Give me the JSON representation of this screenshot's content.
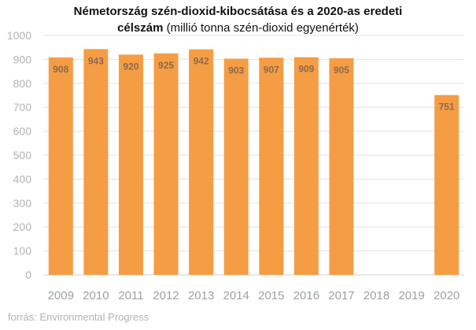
{
  "chart_data": {
    "type": "bar",
    "title_line1": "Németország szén-dioxid-kibocsátása  és a 2020-as eredeti",
    "title_line2_bold": "célszám",
    "title_line2_rest": " (millió tonna szén-dioxid  egyenérték)",
    "categories": [
      "2009",
      "2010",
      "2011",
      "2012",
      "2013",
      "2014",
      "2015",
      "2016",
      "2017",
      "2018",
      "2019",
      "2020"
    ],
    "values": [
      908,
      943,
      920,
      925,
      942,
      903,
      907,
      909,
      905,
      null,
      null,
      751
    ],
    "data_labels": [
      "908",
      "943",
      "920",
      "925",
      "942",
      "903",
      "907",
      "909",
      "905",
      "",
      "",
      "751"
    ],
    "ylim": [
      0,
      1000
    ],
    "yticks": [
      0,
      100,
      200,
      300,
      400,
      500,
      600,
      700,
      800,
      900,
      1000
    ],
    "grid": true,
    "bar_color": "#F59D45",
    "label_color": "#8C6A4C"
  },
  "source": "forrás: Environmental Progress"
}
